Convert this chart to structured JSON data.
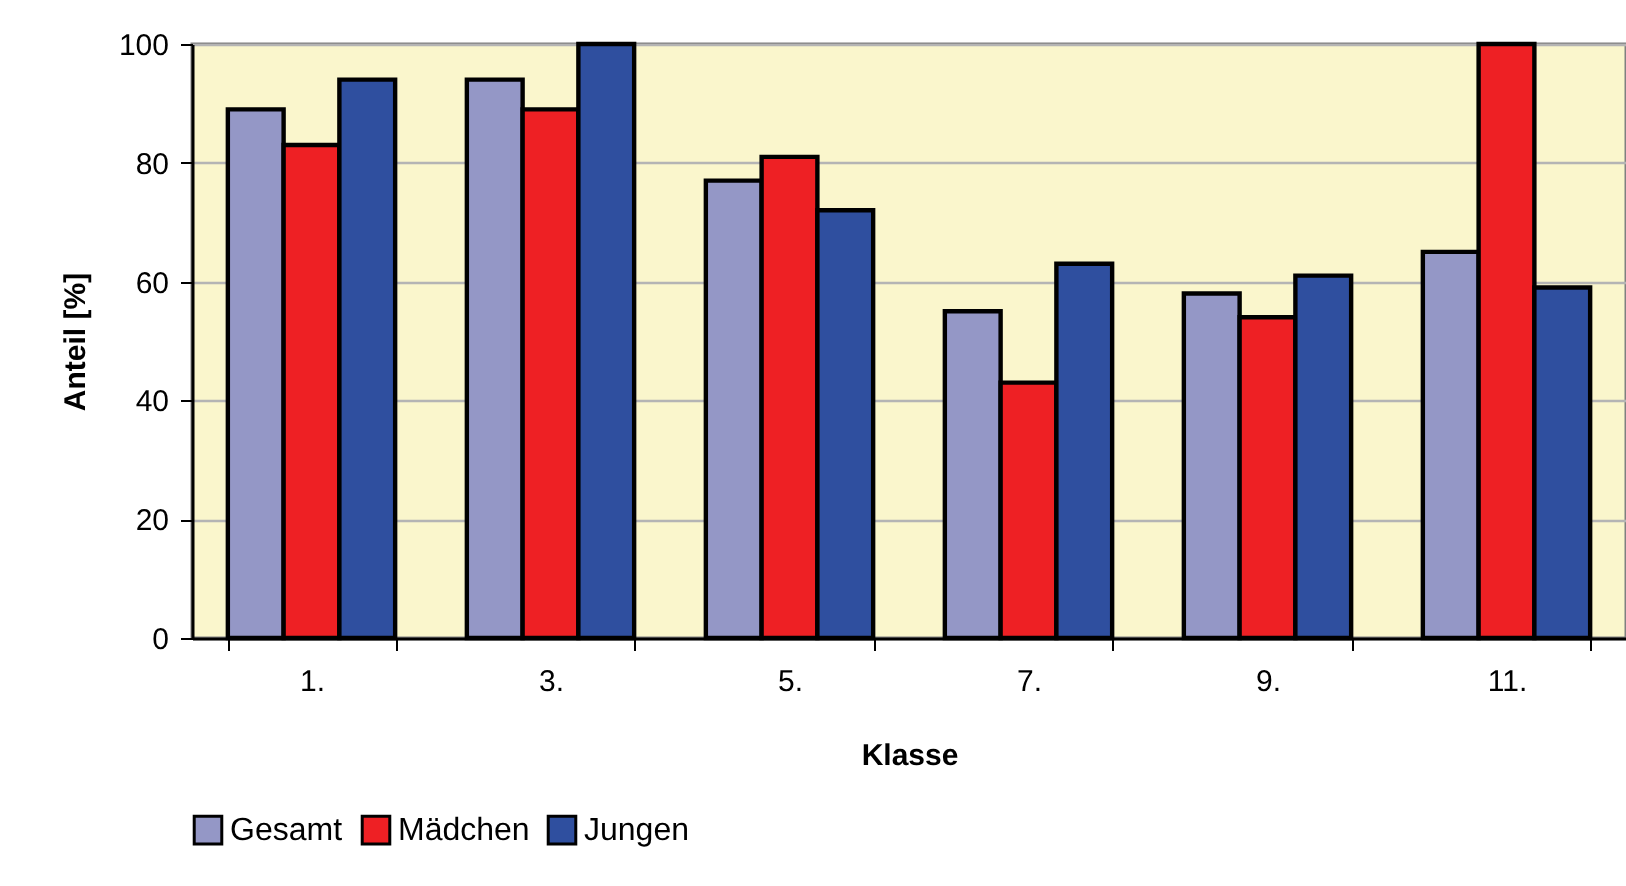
{
  "chart_data": {
    "type": "bar",
    "xlabel": "Klasse",
    "ylabel": "Anteil [%]",
    "categories": [
      "1.",
      "3.",
      "5.",
      "7.",
      "9.",
      "11."
    ],
    "series": [
      {
        "name": "Gesamt",
        "color": "#9497c6",
        "values": [
          89,
          94,
          77,
          55,
          58,
          65
        ]
      },
      {
        "name": "Mädchen",
        "color": "#ee2024",
        "values": [
          83,
          89,
          81,
          43,
          54,
          100
        ]
      },
      {
        "name": "Jungen",
        "color": "#2f4f9f",
        "values": [
          94,
          100,
          72,
          63,
          61,
          59
        ]
      }
    ],
    "ylim": [
      0,
      100
    ],
    "yticks": [
      0,
      20,
      40,
      60,
      80,
      100
    ],
    "grid": "y",
    "legend": "bottom"
  }
}
